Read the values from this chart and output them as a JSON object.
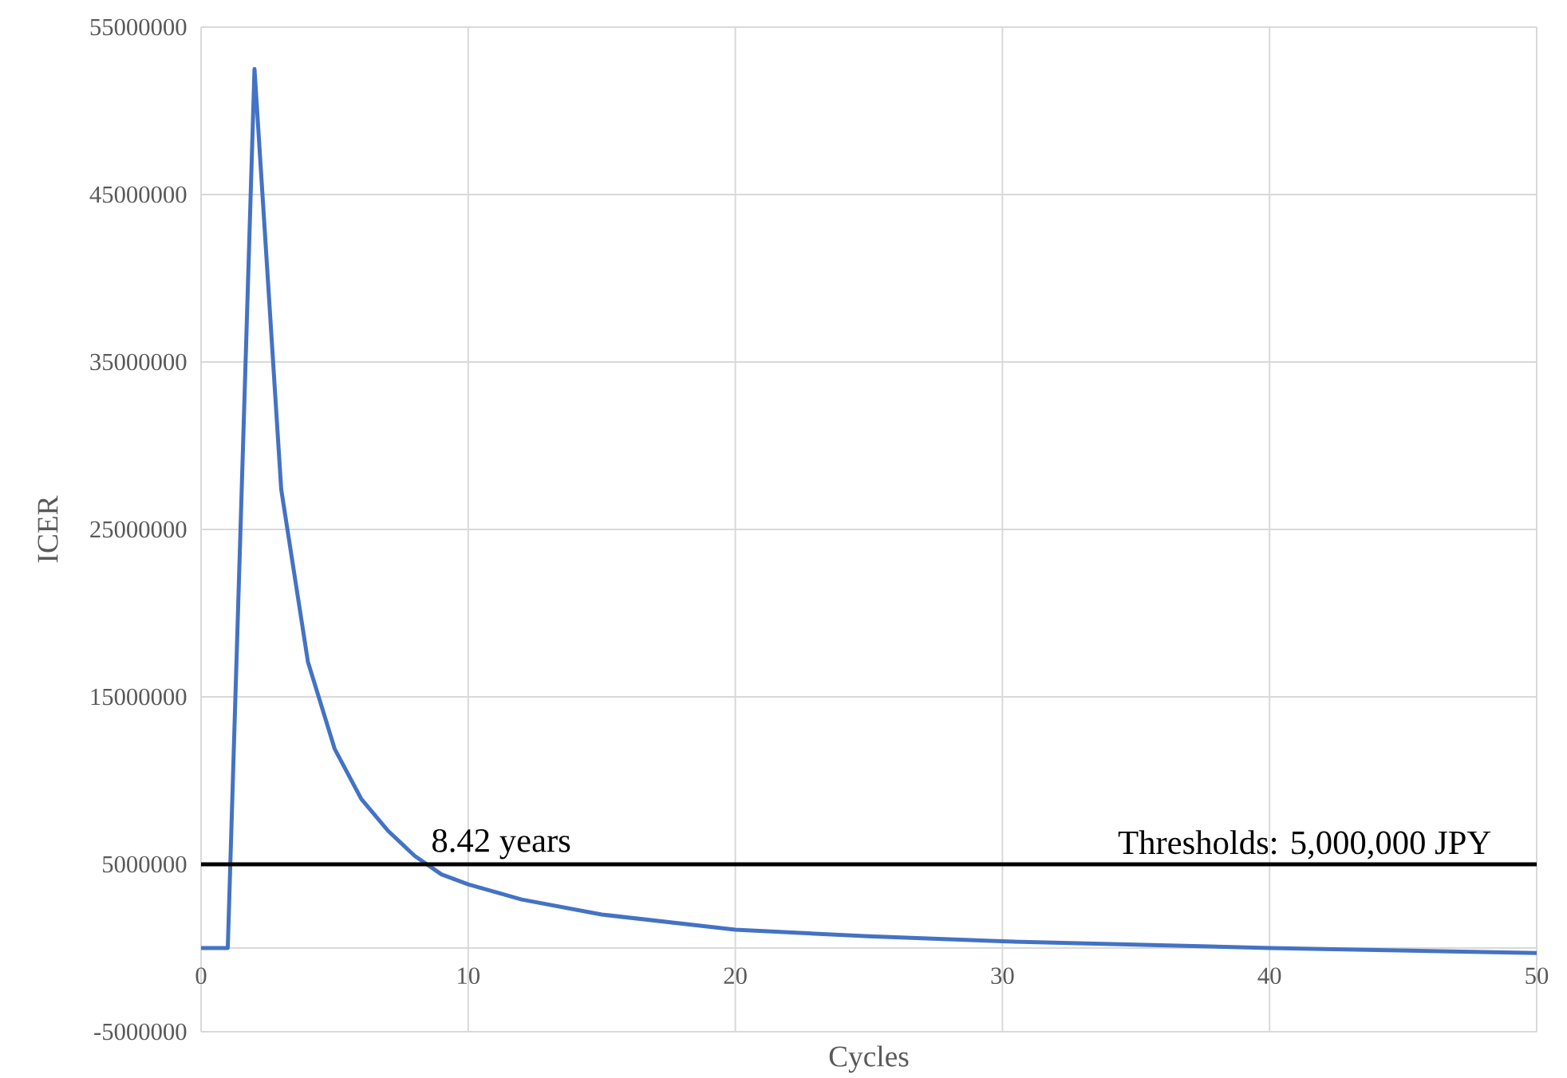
{
  "chart_data": {
    "type": "line",
    "xlabel": "Cycles",
    "ylabel": "ICER",
    "x": [
      0,
      1,
      2,
      3,
      4,
      5,
      6,
      7,
      8,
      9,
      10,
      12,
      15,
      20,
      25,
      30,
      40,
      50
    ],
    "series": [
      {
        "color": "#4472c4",
        "values": [
          0,
          0,
          52500000,
          27400000,
          17100000,
          11900000,
          8900000,
          7000000,
          5500000,
          4400000,
          3800000,
          2900000,
          2000000,
          1100000,
          700000,
          400000,
          0,
          -300000
        ]
      }
    ],
    "xlim": [
      0,
      50
    ],
    "xticks": [
      0,
      10,
      20,
      30,
      40,
      50
    ],
    "ylim": [
      -5000000,
      55000000
    ],
    "yticks": [
      -5000000,
      5000000,
      15000000,
      25000000,
      35000000,
      45000000,
      55000000
    ],
    "grid": true,
    "marker": "none",
    "line_style": "solid",
    "ref_lines": [
      {
        "axis": "y",
        "value": 5000000,
        "label": "Thresholds: 5,000,000 JPY",
        "color": "#000000"
      }
    ],
    "annotations": [
      {
        "text": "8.42 years",
        "x": 8.42,
        "y": 5000000
      }
    ]
  }
}
